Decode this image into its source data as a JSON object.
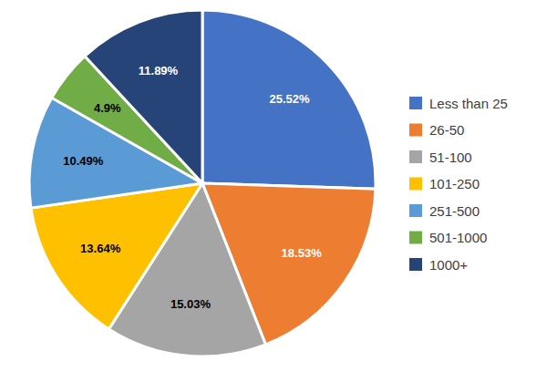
{
  "chart_data": {
    "type": "pie",
    "categories": [
      "Less than 25",
      "26-50",
      "51-100",
      "101-250",
      "251-500",
      "501-1000",
      "1000+"
    ],
    "values": [
      25.52,
      18.53,
      15.03,
      13.64,
      10.49,
      4.9,
      11.89
    ],
    "value_labels": [
      "25.52%",
      "18.53%",
      "15.03%",
      "13.64%",
      "10.49%",
      "4.9%",
      "11.89%"
    ],
    "colors": [
      "#4472c4",
      "#ed7d31",
      "#a5a5a5",
      "#ffc000",
      "#5b9bd5",
      "#70ad47",
      "#264478"
    ],
    "data_labels": true,
    "legend": "right"
  }
}
